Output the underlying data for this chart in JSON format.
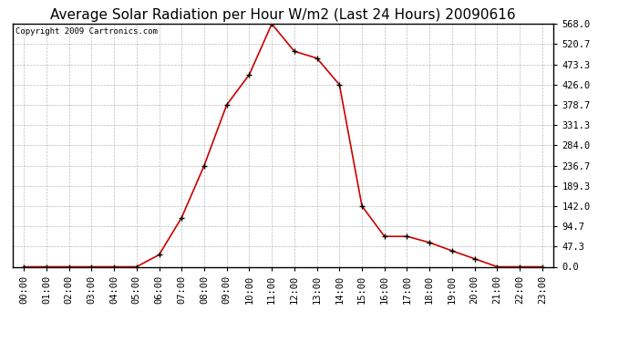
{
  "title": "Average Solar Radiation per Hour W/m2 (Last 24 Hours) 20090616",
  "copyright": "Copyright 2009 Cartronics.com",
  "hours": [
    "00:00",
    "01:00",
    "02:00",
    "03:00",
    "04:00",
    "05:00",
    "06:00",
    "07:00",
    "08:00",
    "09:00",
    "10:00",
    "11:00",
    "12:00",
    "13:00",
    "14:00",
    "15:00",
    "16:00",
    "17:00",
    "18:00",
    "19:00",
    "20:00",
    "21:00",
    "22:00",
    "23:00"
  ],
  "values": [
    0.0,
    0.0,
    0.0,
    0.0,
    0.0,
    0.0,
    28.0,
    115.0,
    236.7,
    378.7,
    449.3,
    568.0,
    504.0,
    488.0,
    426.0,
    142.0,
    71.0,
    71.0,
    56.7,
    37.3,
    18.7,
    0.0,
    0.0,
    0.0
  ],
  "line_color": "#cc0000",
  "marker": "+",
  "marker_size": 5,
  "line_width": 1.2,
  "bg_color": "#ffffff",
  "plot_bg_color": "#ffffff",
  "grid_color": "#bbbbbb",
  "yticks": [
    0.0,
    47.3,
    94.7,
    142.0,
    189.3,
    236.7,
    284.0,
    331.3,
    378.7,
    426.0,
    473.3,
    520.7,
    568.0
  ],
  "ymax": 568.0,
  "ymin": 0.0,
  "title_fontsize": 11,
  "copyright_fontsize": 6.5,
  "tick_fontsize": 7.5,
  "border_color": "#000000"
}
